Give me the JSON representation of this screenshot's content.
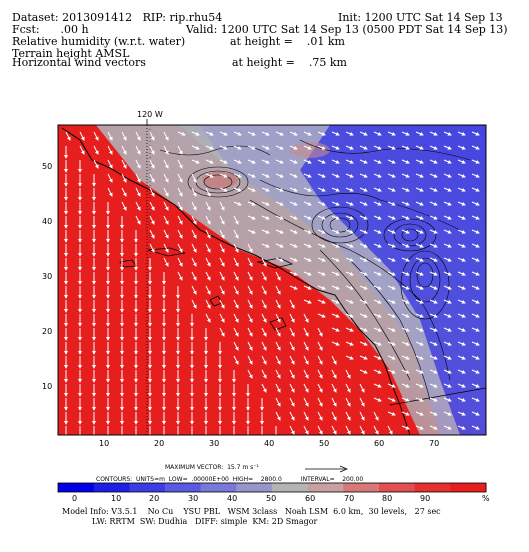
{
  "header": {
    "dataset": "Dataset: 2013091412   RIP: rip.rhu54",
    "init": "Init: 1200 UTC Sat 14 Sep 13",
    "fcst": "Fcst:      .00 h",
    "valid": "Valid: 1200 UTC Sat 14 Sep 13 (0500 PDT Sat 14 Sep 13)",
    "field1": "Relative humidity (w.r.t. water)",
    "field1_height": "at height =    .01 km",
    "field2": "Terrain height AMSL",
    "field3": "Horizontal wind vectors",
    "field3_height": "at height =    .75 km"
  },
  "map": {
    "meridian_label": "120 W",
    "x_ticks": [
      "10",
      "20",
      "30",
      "40",
      "50",
      "60",
      "70"
    ],
    "y_ticks": [
      "10",
      "20",
      "30",
      "40",
      "50"
    ],
    "colors": {
      "dry": "#1e2ee6",
      "mid": "#b4b4b4",
      "moist": "#e61e1e"
    }
  },
  "vector_legend": {
    "max_vector": "MAXIMUM VECTOR:  15.7 m s⁻¹",
    "contours": "CONTOURS:  UNITS=m  LOW=  .00000E+00  HIGH=    2800.0          INTERVAL=    200.00"
  },
  "colorbar": {
    "labels": [
      "0",
      "10",
      "20",
      "30",
      "40",
      "50",
      "60",
      "70",
      "80",
      "90"
    ],
    "unit": "%",
    "colors": [
      "#0000e6",
      "#1e1ee6",
      "#3c3ce6",
      "#5a5ae0",
      "#7878d8",
      "#9696c8",
      "#b4b4b4",
      "#c8a0a0",
      "#d87878",
      "#e05050",
      "#e63030",
      "#e61e1e"
    ]
  },
  "footer": {
    "line1": "Model Info: V3.5.1    No Cu    YSU PBL   WSM 3class   Noah LSM  6.0 km,  30 levels,   27 sec",
    "line2": "LW: RRTM  SW: Dudhia   DIFF: simple  KM: 2D Smagor"
  }
}
